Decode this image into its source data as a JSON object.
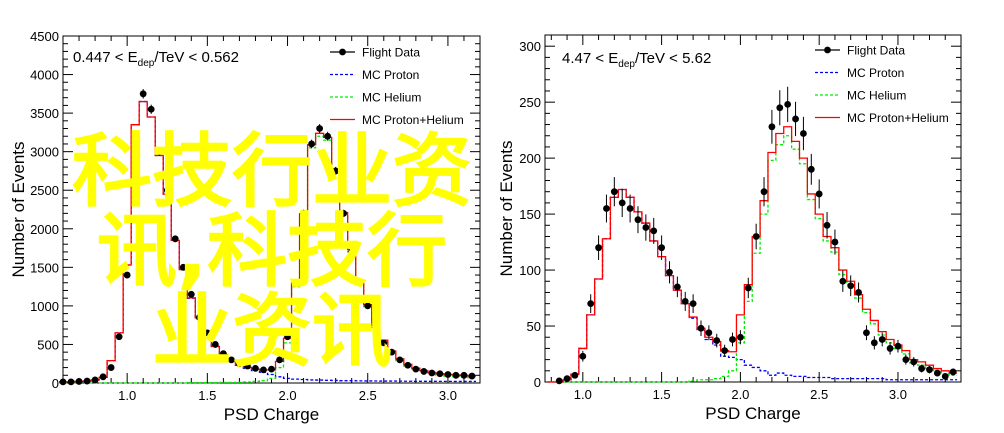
{
  "chart_data": [
    {
      "type": "line",
      "label": "0.447 < E",
      "label_sub": "dep",
      "label_tail": "/TeV < 0.562",
      "xlabel": "PSD Charge",
      "ylabel": "Number of Events",
      "xlim": [
        0.6,
        3.2
      ],
      "ylim": [
        0,
        4500
      ],
      "xticks": [
        "1.0",
        "1.5",
        "2.0",
        "2.5",
        "3.0"
      ],
      "yticks": [
        "0",
        "500",
        "1000",
        "1500",
        "2000",
        "2500",
        "3000",
        "3500",
        "4000",
        "4500"
      ],
      "legend": [
        "Flight Data",
        "MC Proton",
        "MC Helium",
        "MC Proton+Helium"
      ],
      "legend_position": "top-right",
      "x": [
        0.6,
        0.65,
        0.7,
        0.75,
        0.8,
        0.85,
        0.9,
        0.95,
        1.0,
        1.05,
        1.1,
        1.15,
        1.2,
        1.25,
        1.3,
        1.35,
        1.4,
        1.45,
        1.5,
        1.55,
        1.6,
        1.65,
        1.7,
        1.75,
        1.8,
        1.85,
        1.9,
        1.95,
        2.0,
        2.05,
        2.1,
        2.15,
        2.2,
        2.25,
        2.3,
        2.35,
        2.4,
        2.45,
        2.5,
        2.55,
        2.6,
        2.65,
        2.7,
        2.75,
        2.8,
        2.85,
        2.9,
        2.95,
        3.0,
        3.05,
        3.1,
        3.15
      ],
      "series": [
        {
          "name": "Flight Data",
          "values": [
            15,
            15,
            20,
            25,
            40,
            80,
            200,
            600,
            1400,
            3200,
            3750,
            3550,
            3000,
            2500,
            1870,
            1500,
            1150,
            850,
            650,
            500,
            380,
            300,
            250,
            220,
            190,
            170,
            180,
            300,
            600,
            1300,
            2200,
            3100,
            3300,
            3200,
            2750,
            2200,
            1700,
            1300,
            1000,
            720,
            520,
            400,
            300,
            230,
            180,
            150,
            130,
            120,
            110,
            100,
            100,
            90
          ]
        },
        {
          "name": "MC Proton",
          "values": [
            15,
            15,
            20,
            25,
            40,
            75,
            290,
            650,
            1530,
            3350,
            3650,
            3450,
            2950,
            2450,
            1850,
            1470,
            1100,
            840,
            620,
            470,
            360,
            290,
            230,
            190,
            160,
            140,
            110,
            80,
            60,
            50,
            45,
            40,
            38,
            35,
            33,
            30,
            30,
            28,
            27,
            26,
            25,
            25,
            24,
            23,
            22,
            22,
            22,
            21,
            21,
            20,
            20,
            20
          ]
        },
        {
          "name": "MC Helium",
          "values": [
            0,
            0,
            0,
            0,
            0,
            0,
            0,
            0,
            0,
            0,
            0,
            0,
            0,
            0,
            0,
            0,
            5,
            5,
            5,
            5,
            8,
            8,
            10,
            12,
            20,
            30,
            60,
            200,
            520,
            1250,
            2150,
            3050,
            3200,
            3150,
            2720,
            2180,
            1700,
            1280,
            990,
            720,
            530,
            390,
            290,
            220,
            170,
            140,
            115,
            100,
            90,
            85,
            80,
            70
          ]
        },
        {
          "name": "MC Proton+Helium",
          "values": [
            15,
            15,
            20,
            25,
            40,
            75,
            290,
            650,
            1530,
            3350,
            3650,
            3450,
            2950,
            2450,
            1850,
            1470,
            1105,
            845,
            625,
            475,
            368,
            298,
            240,
            202,
            180,
            170,
            170,
            280,
            580,
            1300,
            2195,
            3090,
            3238,
            3185,
            2753,
            2210,
            1730,
            1308,
            1017,
            746,
            555,
            415,
            314,
            243,
            192,
            162,
            137,
            121,
            111,
            105,
            100,
            90
          ]
        }
      ]
    },
    {
      "type": "line",
      "label": "4.47 < E",
      "label_sub": "dep",
      "label_tail": "/TeV < 5.62",
      "xlabel": "PSD Charge",
      "ylabel": "Number of Events",
      "xlim": [
        0.76,
        3.4
      ],
      "ylim": [
        0,
        310
      ],
      "xticks": [
        "1.0",
        "1.5",
        "2.0",
        "2.5",
        "3.0"
      ],
      "yticks": [
        "0",
        "50",
        "100",
        "150",
        "200",
        "250",
        "300"
      ],
      "legend": [
        "Flight Data",
        "MC Proton",
        "MC Helium",
        "MC Proton+Helium"
      ],
      "legend_position": "top-right",
      "x": [
        0.8,
        0.85,
        0.9,
        0.95,
        1.0,
        1.05,
        1.1,
        1.15,
        1.2,
        1.25,
        1.3,
        1.35,
        1.4,
        1.45,
        1.5,
        1.55,
        1.6,
        1.65,
        1.7,
        1.75,
        1.8,
        1.85,
        1.9,
        1.95,
        2.0,
        2.05,
        2.1,
        2.15,
        2.2,
        2.25,
        2.3,
        2.35,
        2.4,
        2.45,
        2.5,
        2.55,
        2.6,
        2.65,
        2.7,
        2.75,
        2.8,
        2.85,
        2.9,
        2.95,
        3.0,
        3.05,
        3.1,
        3.15,
        3.2,
        3.25,
        3.3,
        3.35
      ],
      "series": [
        {
          "name": "Flight Data",
          "values": [
            0,
            1,
            3,
            6,
            23,
            70,
            120,
            155,
            170,
            160,
            155,
            145,
            138,
            135,
            120,
            98,
            85,
            72,
            70,
            48,
            44,
            37,
            28,
            38,
            40,
            84,
            130,
            170,
            228,
            245,
            248,
            235,
            222,
            190,
            168,
            140,
            125,
            90,
            86,
            80,
            44,
            35,
            38,
            30,
            32,
            20,
            18,
            12,
            11,
            8,
            5,
            9
          ]
        },
        {
          "name": "MC Proton",
          "values": [
            0,
            0,
            2,
            7,
            30,
            60,
            92,
            128,
            165,
            172,
            165,
            152,
            142,
            126,
            112,
            95,
            82,
            70,
            57,
            46,
            38,
            33,
            23,
            22,
            20,
            15,
            13,
            10,
            6,
            8,
            6,
            5,
            5,
            4,
            4,
            4,
            3,
            3,
            3,
            3,
            3,
            3,
            3,
            2,
            2,
            2,
            2,
            2,
            2,
            2,
            2,
            2
          ]
        },
        {
          "name": "MC Helium",
          "values": [
            0,
            0,
            0,
            0,
            0,
            0,
            0,
            0,
            0,
            0,
            0,
            0,
            0,
            0,
            0,
            0,
            0,
            0,
            1,
            2,
            2,
            3,
            5,
            10,
            35,
            72,
            115,
            150,
            198,
            212,
            220,
            208,
            195,
            163,
            146,
            126,
            116,
            96,
            87,
            75,
            62,
            52,
            42,
            35,
            30,
            25,
            17,
            15,
            12,
            9,
            7,
            6
          ]
        },
        {
          "name": "MC Proton+Helium",
          "values": [
            0,
            0,
            2,
            7,
            30,
            60,
            92,
            128,
            165,
            172,
            165,
            152,
            142,
            126,
            112,
            95,
            82,
            70,
            58,
            48,
            40,
            36,
            28,
            27,
            60,
            87,
            130,
            162,
            205,
            222,
            228,
            215,
            200,
            168,
            150,
            130,
            120,
            100,
            90,
            78,
            65,
            55,
            45,
            38,
            33,
            28,
            20,
            18,
            15,
            12,
            10,
            8
          ]
        }
      ]
    }
  ],
  "colors": {
    "flight": "#000000",
    "proton": "#0000ff",
    "helium": "#00ee00",
    "sum": "#ff0000",
    "watermark": "#ffff00"
  },
  "watermark": "科技行业资讯,科技行业资讯"
}
